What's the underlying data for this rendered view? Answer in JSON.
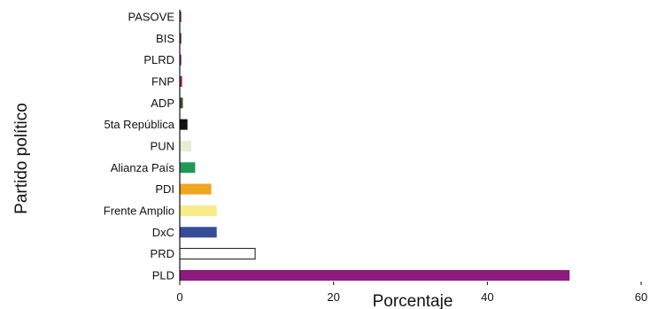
{
  "chart_data": {
    "type": "bar",
    "orientation": "horizontal",
    "categories": [
      "PASOVE",
      "BIS",
      "PLRD",
      "FNP",
      "ADP",
      "5ta República",
      "PUN",
      "Alianza País",
      "PDI",
      "Frente Amplio",
      "DxC",
      "PRD",
      "PLD"
    ],
    "values": [
      0.2,
      0.2,
      0.2,
      0.3,
      0.4,
      1.0,
      1.5,
      2.0,
      4.1,
      4.8,
      4.8,
      9.8,
      50.7
    ],
    "colors": [
      "#8a1a6e",
      "#6b1750",
      "#7a1b5e",
      "#8e1e74",
      "#3d4a2a",
      "#111111",
      "#e3efd3",
      "#1f9a55",
      "#f0a51e",
      "#f7eb8a",
      "#344d96",
      "#ffffff",
      "#8d1a7d"
    ],
    "xlabel": "Porcentaje",
    "ylabel": "Partido político",
    "xlim": [
      0,
      60
    ],
    "xticks": [
      "0",
      "20",
      "40",
      "60"
    ],
    "grid": false,
    "legend": "none"
  }
}
